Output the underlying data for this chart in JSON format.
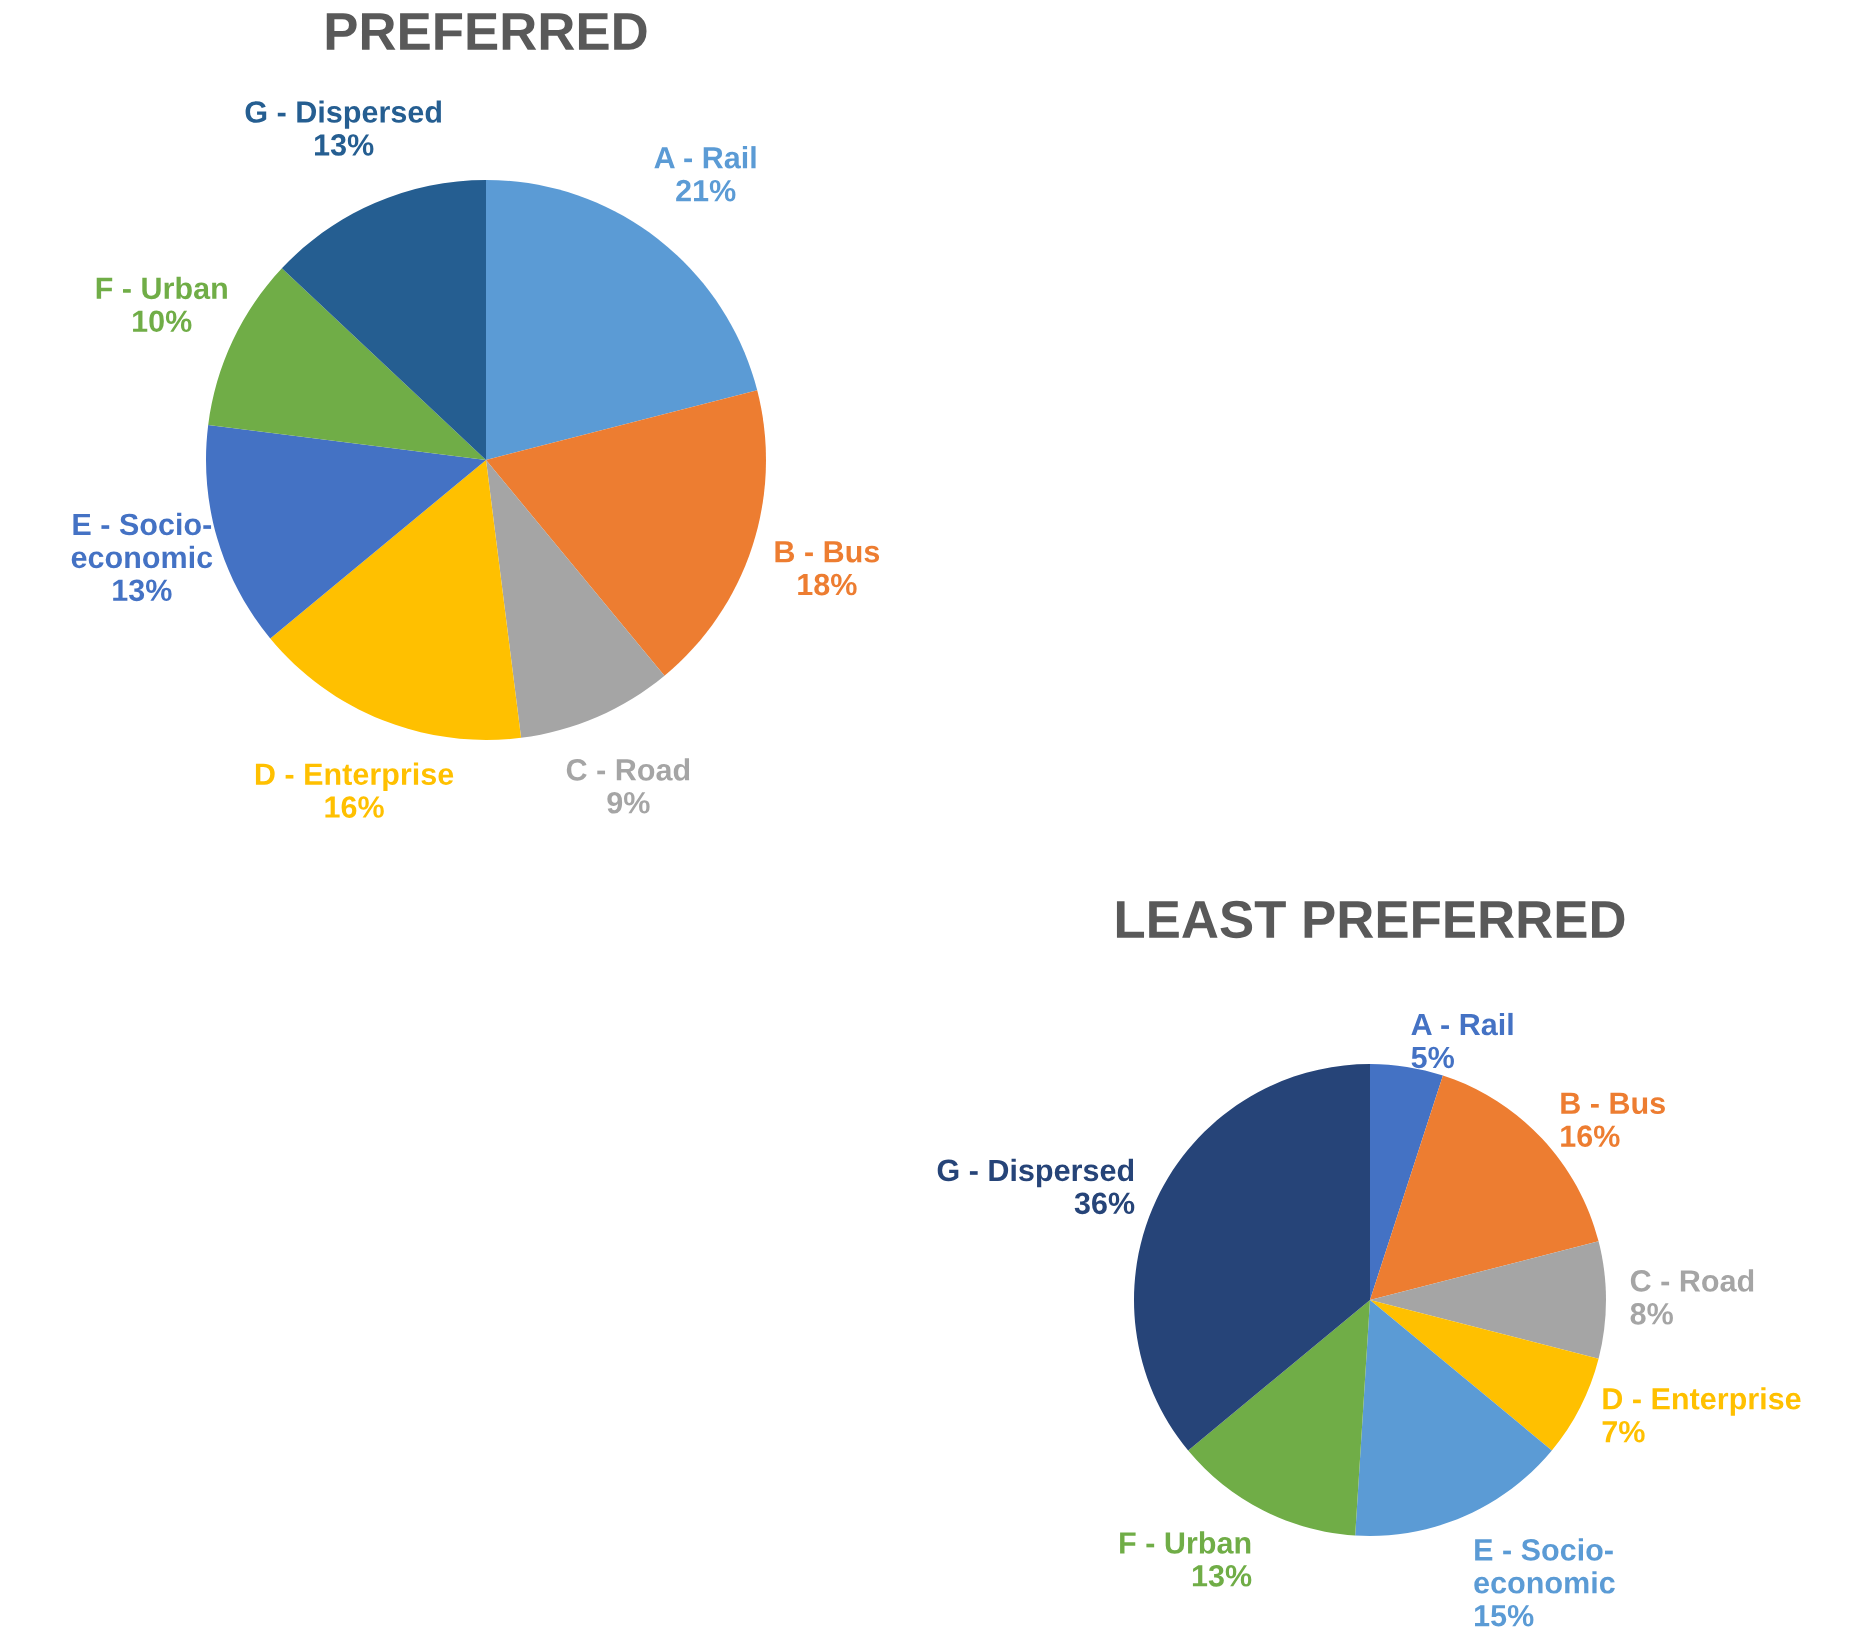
{
  "chart_data": [
    {
      "type": "pie",
      "title": "PREFERRED",
      "categories": [
        "A - Rail",
        "B - Bus",
        "C - Road",
        "D - Enterprise",
        "E - Socio-\neconomic",
        "F - Urban",
        "G - Dispersed"
      ],
      "values": [
        21,
        18,
        9,
        16,
        13,
        10,
        13
      ],
      "value_labels": [
        "21%",
        "18%",
        "9%",
        "16%",
        "13%",
        "10%",
        "13%"
      ],
      "colors": [
        "#5b9bd5",
        "#ed7d31",
        "#a5a5a5",
        "#ffc000",
        "#4472c4",
        "#70ad47",
        "#255e91"
      ],
      "legend": false
    },
    {
      "type": "pie",
      "title": "LEAST PREFERRED",
      "categories": [
        "A - Rail",
        "B - Bus",
        "C - Road",
        "D - Enterprise",
        "E - Socio-\neconomic",
        "F - Urban",
        "G - Dispersed"
      ],
      "values": [
        5,
        16,
        8,
        7,
        15,
        13,
        36
      ],
      "value_labels": [
        "5%",
        "16%",
        "8%",
        "7%",
        "15%",
        "13%",
        "36%"
      ],
      "colors": [
        "#4472c4",
        "#ed7d31",
        "#a5a5a5",
        "#ffc000",
        "#5b9bd5",
        "#70ad47",
        "#264478"
      ],
      "legend": false
    }
  ]
}
